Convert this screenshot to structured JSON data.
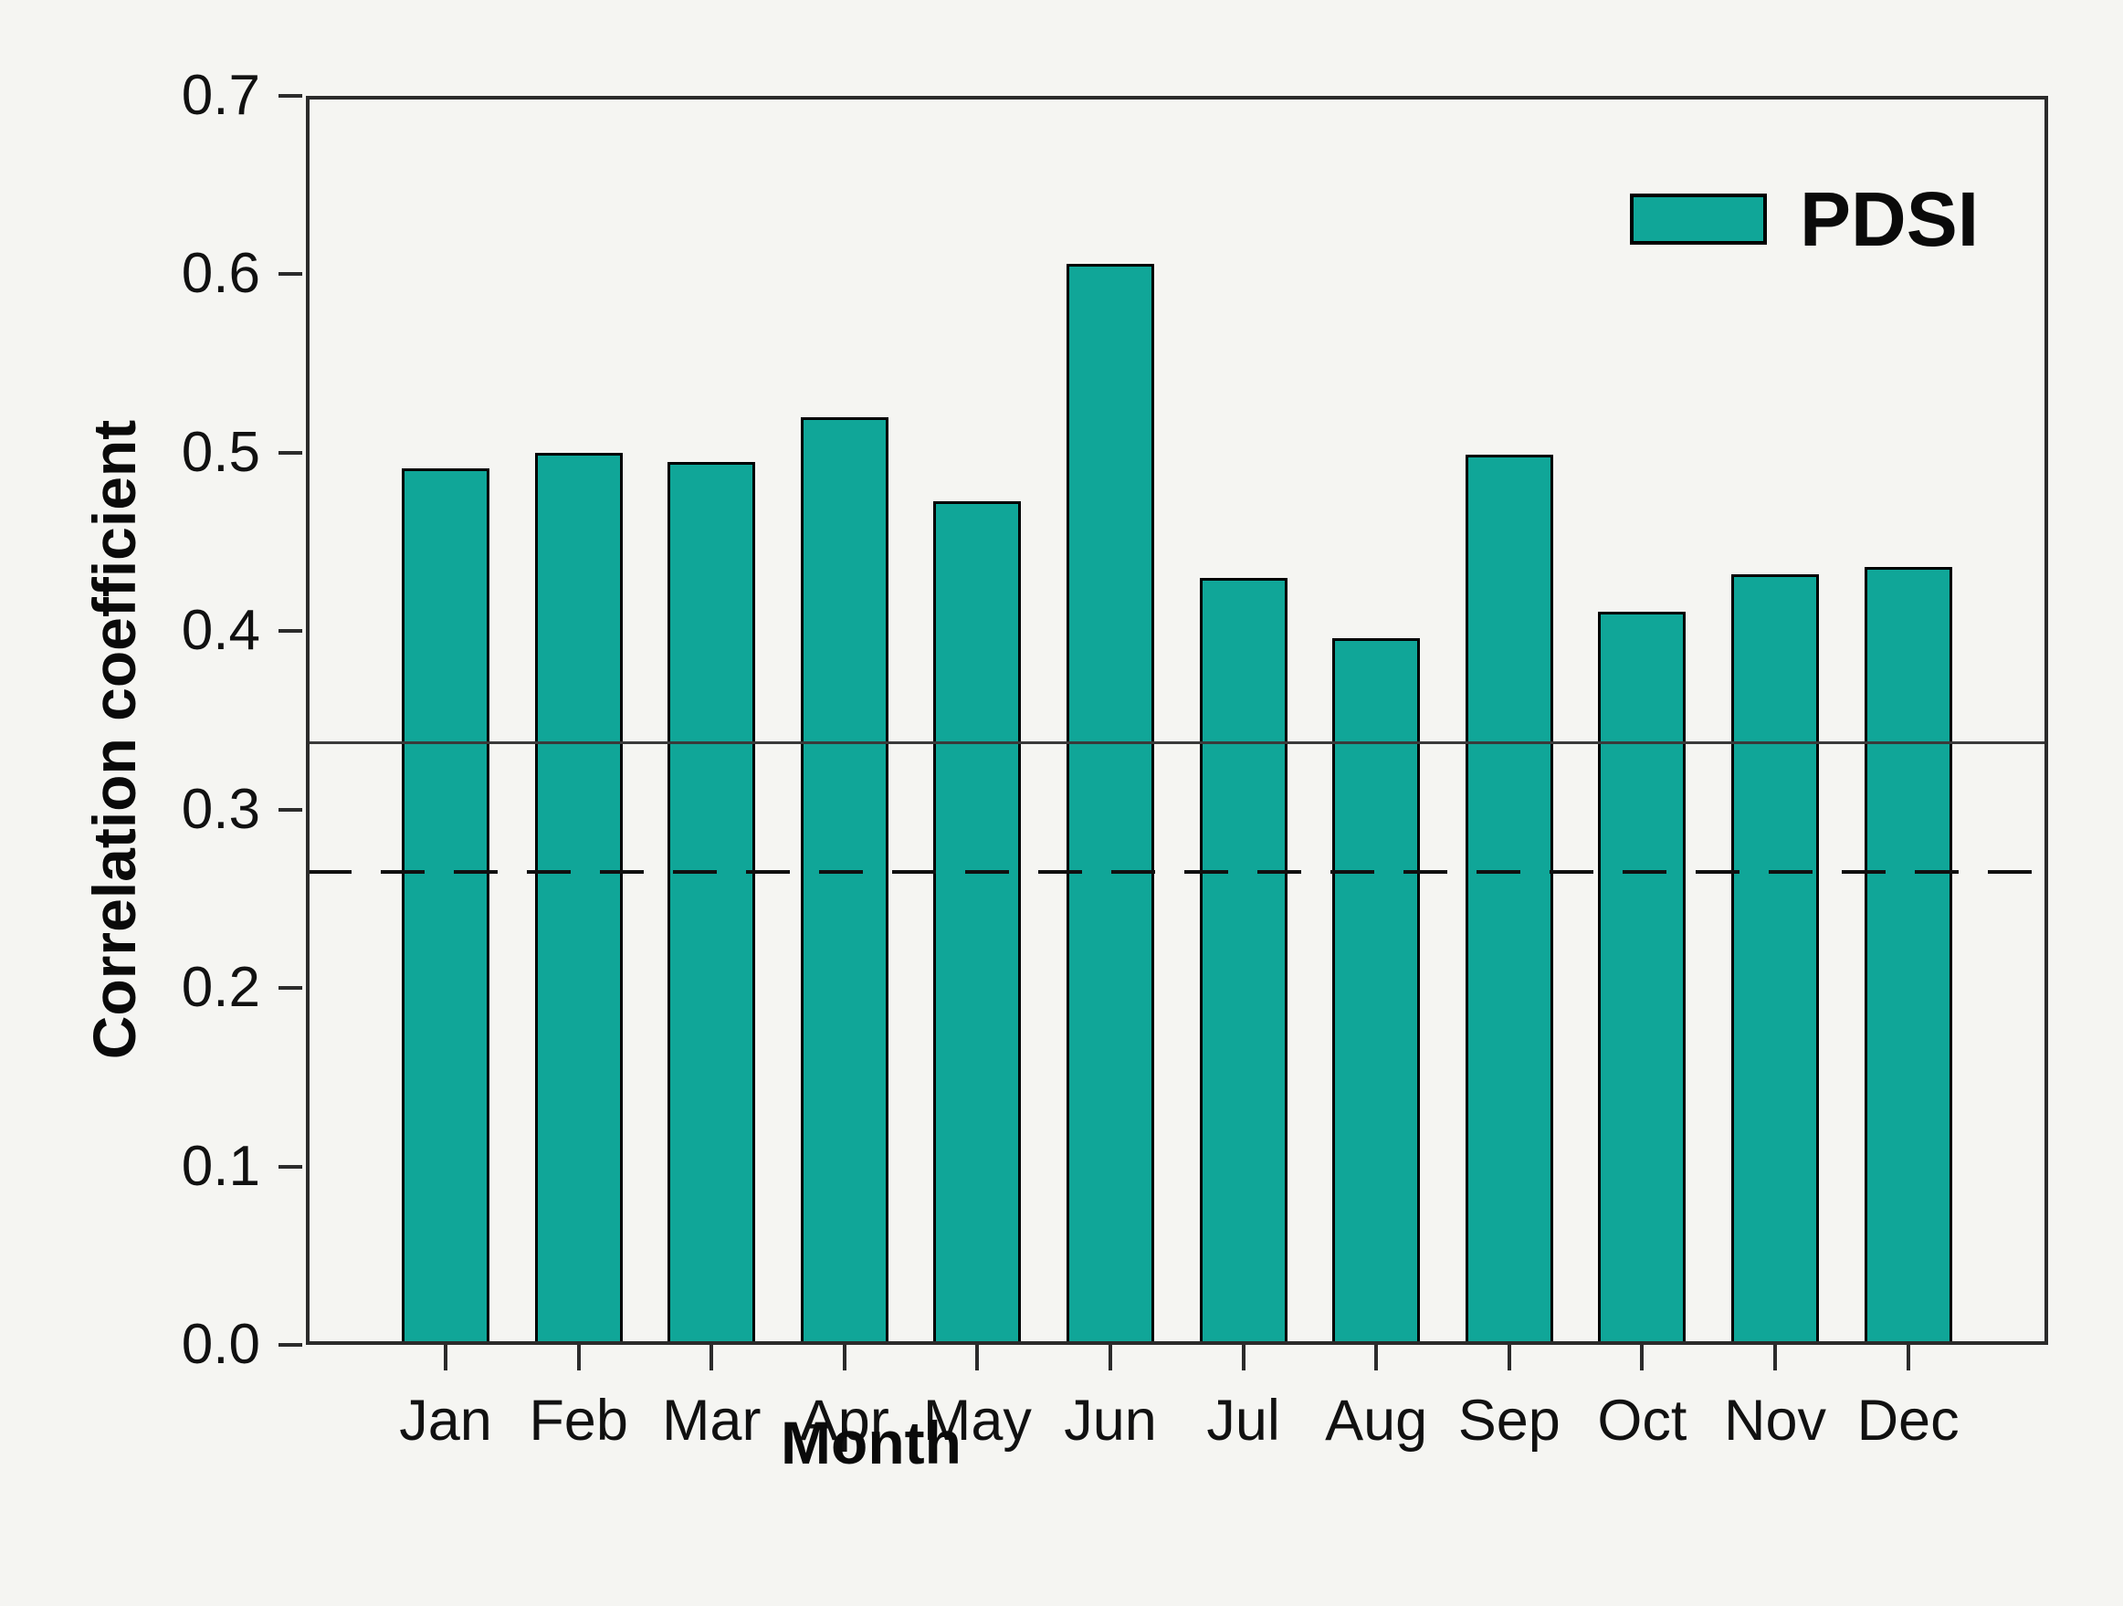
{
  "figure": {
    "background_color": "#f5f5f2",
    "frame_color": "#2b2b2b",
    "text_color": "#111111"
  },
  "legend": {
    "label": "PDSI",
    "position": "top-right"
  },
  "chart_data": {
    "type": "bar",
    "title": "",
    "xlabel": "Month",
    "ylabel": "Correlation coefficient",
    "categories": [
      "Jan",
      "Feb",
      "Mar",
      "Apr",
      "May",
      "Jun",
      "Jul",
      "Aug",
      "Sep",
      "Oct",
      "Nov",
      "Dec"
    ],
    "series": [
      {
        "name": "PDSI",
        "values": [
          0.491,
          0.5,
          0.495,
          0.52,
          0.473,
          0.606,
          0.43,
          0.396,
          0.499,
          0.411,
          0.432,
          0.436
        ]
      }
    ],
    "ylim": [
      0.0,
      0.7
    ],
    "yticks": [
      0.0,
      0.1,
      0.2,
      0.3,
      0.4,
      0.5,
      0.6,
      0.7
    ],
    "ytick_decimals": 1,
    "grid": false,
    "legend_position": "top-right-inside",
    "bar_fill_color": "#10a698",
    "bar_border_color": "#000000",
    "reference_lines": [
      {
        "style": "solid",
        "value": 0.337,
        "color": "#3a3a3a"
      },
      {
        "style": "dashed",
        "value": 0.265,
        "color": "#101010"
      }
    ]
  }
}
